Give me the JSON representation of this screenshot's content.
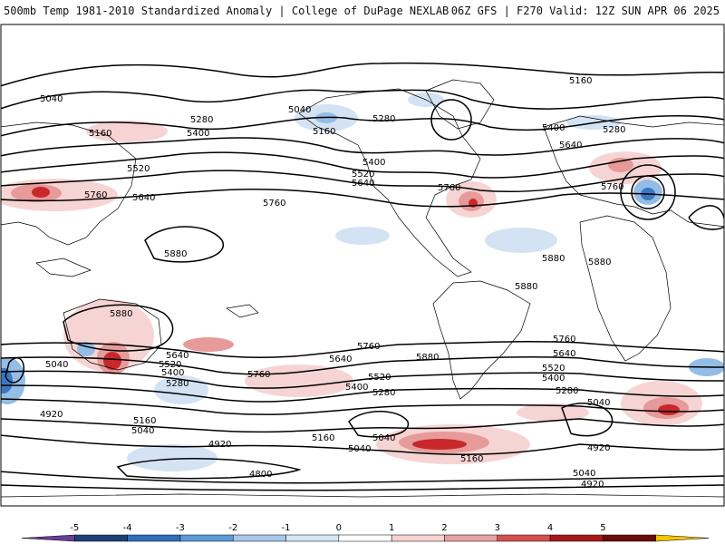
{
  "header": {
    "title_left": "500mb Temp 1981-2010 Standardized Anomaly | College of DuPage NEXLAB",
    "title_right": "06Z GFS | F270 Valid: 12Z SUN APR 06 2025"
  },
  "contour_labels": [
    {
      "id": "c5160a",
      "text": "5160"
    },
    {
      "id": "c5040a",
      "text": "5040"
    },
    {
      "id": "c5040b",
      "text": "5040"
    },
    {
      "id": "c5160b",
      "text": "5160"
    },
    {
      "id": "c5280a",
      "text": "5280"
    },
    {
      "id": "c5400a",
      "text": "5400"
    },
    {
      "id": "c5520a",
      "text": "5520"
    },
    {
      "id": "c5640a",
      "text": "5640"
    },
    {
      "id": "c5760a",
      "text": "5760"
    },
    {
      "id": "c5760b",
      "text": "5760"
    },
    {
      "id": "c5880a",
      "text": "5880"
    },
    {
      "id": "c5160c",
      "text": "5160"
    },
    {
      "id": "c5280b",
      "text": "5280"
    },
    {
      "id": "c5400b",
      "text": "5400"
    },
    {
      "id": "c5520b",
      "text": "5520"
    },
    {
      "id": "c5640b",
      "text": "5640"
    },
    {
      "id": "c5760c",
      "text": "5760"
    },
    {
      "id": "c5280c",
      "text": "5280"
    },
    {
      "id": "c5400c",
      "text": "5400"
    },
    {
      "id": "c5640c",
      "text": "5640"
    },
    {
      "id": "c5760d",
      "text": "5760"
    },
    {
      "id": "c5880b",
      "text": "5880"
    },
    {
      "id": "c5880c",
      "text": "5880"
    },
    {
      "id": "c5880d",
      "text": "5880"
    },
    {
      "id": "c5880e",
      "text": "5880"
    },
    {
      "id": "c5760e",
      "text": "5760"
    },
    {
      "id": "c5640d",
      "text": "5640"
    },
    {
      "id": "c5520c",
      "text": "5520"
    },
    {
      "id": "c5400d",
      "text": "5400"
    },
    {
      "id": "c5280d",
      "text": "5280"
    },
    {
      "id": "c5760f",
      "text": "5760"
    },
    {
      "id": "c5640e",
      "text": "5640"
    },
    {
      "id": "c5520d",
      "text": "5520"
    },
    {
      "id": "c5400e",
      "text": "5400"
    },
    {
      "id": "c5280e",
      "text": "5280"
    },
    {
      "id": "c5760g",
      "text": "5760"
    },
    {
      "id": "c5640f",
      "text": "5640"
    },
    {
      "id": "c5520e",
      "text": "5520"
    },
    {
      "id": "c5400f",
      "text": "5400"
    },
    {
      "id": "c5280f",
      "text": "5280"
    },
    {
      "id": "c5160d",
      "text": "5160"
    },
    {
      "id": "c5040c",
      "text": "5040"
    },
    {
      "id": "c4920a",
      "text": "4920"
    },
    {
      "id": "c4920b",
      "text": "4920"
    },
    {
      "id": "c4800a",
      "text": "4800"
    },
    {
      "id": "c5160e",
      "text": "5160"
    },
    {
      "id": "c5040d",
      "text": "5040"
    },
    {
      "id": "c5040e",
      "text": "5040"
    },
    {
      "id": "c5160f",
      "text": "5160"
    },
    {
      "id": "c5040f",
      "text": "5040"
    },
    {
      "id": "c4920c",
      "text": "4920"
    },
    {
      "id": "c5040g",
      "text": "5040"
    },
    {
      "id": "c4920d",
      "text": "4920"
    },
    {
      "id": "c5880f",
      "text": "5880"
    },
    {
      "id": "c5040h",
      "text": "5040"
    }
  ],
  "colorbar": {
    "ticks": [
      "-5",
      "-4",
      "-3",
      "-2",
      "-1",
      "0",
      "1",
      "2",
      "3",
      "4",
      "5"
    ],
    "colors": [
      "#6a3d9a",
      "#1f3f7a",
      "#2f6fba",
      "#5a9ad6",
      "#a6c8ea",
      "#d5e6f5",
      "#ffffff",
      "#f6d2d2",
      "#e8a0a0",
      "#d45050",
      "#a81818",
      "#6e0a0a",
      "#f5c400"
    ]
  },
  "colors": {
    "warm_light": "#f7d4d4",
    "warm_mid": "#e79a9a",
    "warm_strong": "#c8282a",
    "cold_light": "#d3e3f4",
    "cold_mid": "#94bde6",
    "cold_strong": "#3a78c4"
  }
}
